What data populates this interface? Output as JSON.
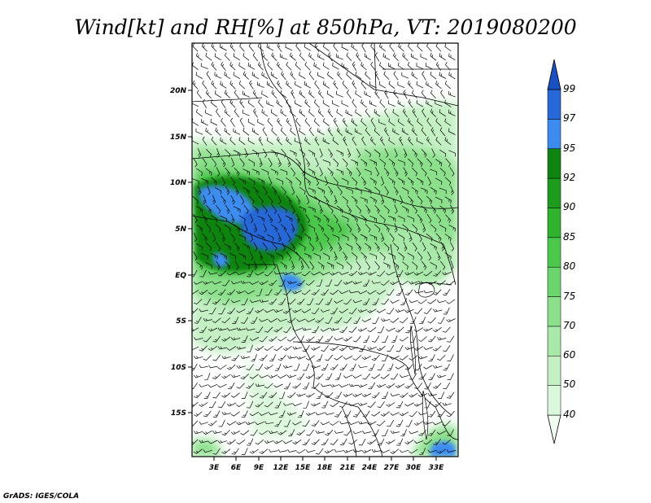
{
  "title": "Wind[kt] and RH[%] at 850hPa, VT: 2019080200",
  "credit": "GrADS: IGES/COLA",
  "map": {
    "lon_range": [
      0,
      36
    ],
    "lat_range": [
      -20,
      24
    ],
    "lon_ticks": [
      "3E",
      "6E",
      "9E",
      "12E",
      "15E",
      "18E",
      "21E",
      "24E",
      "27E",
      "30E",
      "33E"
    ],
    "lat_ticks": [
      "20N",
      "15N",
      "10N",
      "5N",
      "EQ",
      "5S",
      "10S",
      "15S"
    ],
    "wind_barbs": "dense field of wind barbs (knots) over the domain"
  },
  "colorbar": {
    "levels": [
      "40",
      "50",
      "60",
      "70",
      "75",
      "80",
      "85",
      "90",
      "92",
      "95",
      "97",
      "99"
    ],
    "colors": [
      "#f0fff0",
      "#dcf8dc",
      "#c4f0c4",
      "#a8e8a8",
      "#8ce08c",
      "#6cd46c",
      "#4cc84c",
      "#30b430",
      "#1e9c1e",
      "#108410",
      "#3c8cf0",
      "#2868d8",
      "#1a50c0"
    ]
  },
  "chart_data": {
    "type": "heatmap",
    "title": "Wind[kt] and RH[%] at 850hPa, VT: 2019080200",
    "variable": "RH[%]",
    "overlay": "Wind[kt] barbs",
    "level": "850hPa",
    "valid_time": "2019080200",
    "x_ticks": [
      "3E",
      "6E",
      "9E",
      "12E",
      "15E",
      "18E",
      "21E",
      "24E",
      "27E",
      "30E",
      "33E"
    ],
    "y_ticks": [
      "20N",
      "15N",
      "10N",
      "5N",
      "EQ",
      "5S",
      "10S",
      "15S"
    ],
    "contour_levels": [
      40,
      50,
      60,
      70,
      75,
      80,
      85,
      90,
      92,
      95,
      97,
      99
    ]
  }
}
